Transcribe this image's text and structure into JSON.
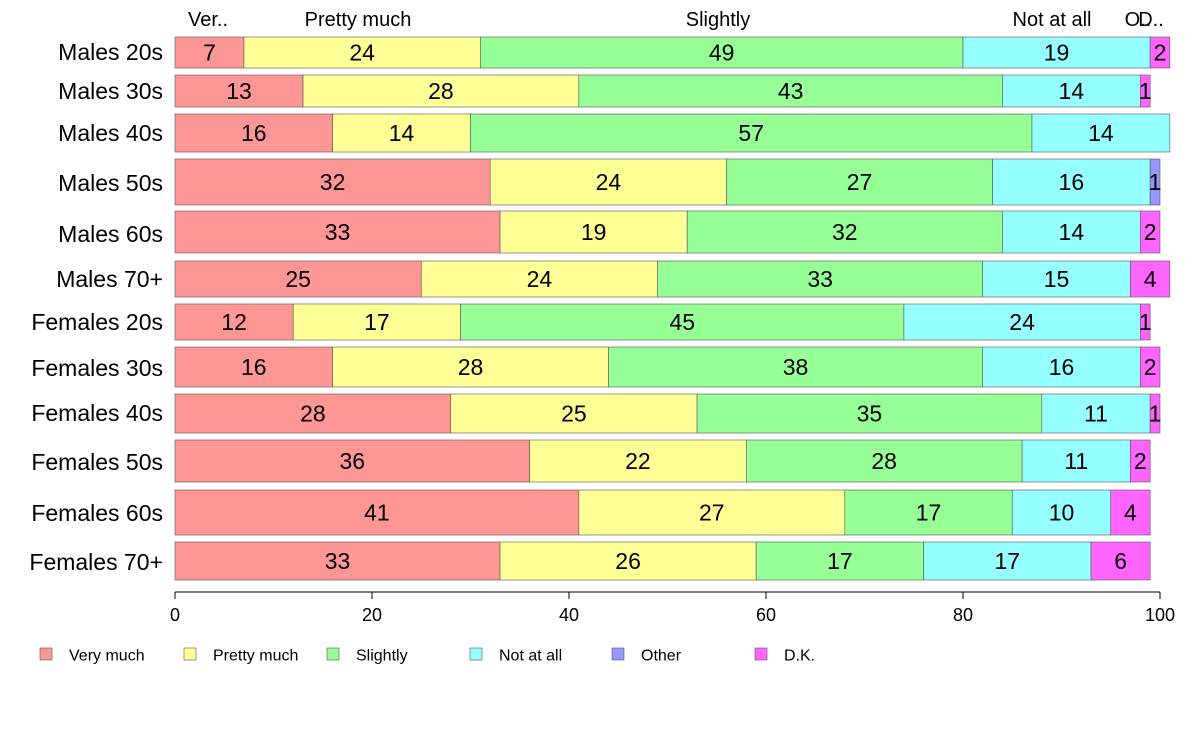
{
  "chart_data": {
    "type": "bar",
    "orientation": "horizontal",
    "stacked": true,
    "title": "",
    "xlabel": "",
    "ylabel": "",
    "xlim": [
      0,
      100
    ],
    "x_ticks": [
      "0",
      "20",
      "40",
      "60",
      "80",
      "100"
    ],
    "grid": false,
    "legend_position": "bottom",
    "top_labels": [
      "Ver..",
      "Pretty much",
      "Slightly",
      "Not at all",
      "O..",
      "D.."
    ],
    "categories": [
      "Males 20s",
      "Males 30s",
      "Males 40s",
      "Males 50s",
      "Males 60s",
      "Males 70+",
      "Females 20s",
      "Females 30s",
      "Females 40s",
      "Females 50s",
      "Females 60s",
      "Females 70+"
    ],
    "series": [
      {
        "name": "Very much",
        "color": "#ff9696",
        "values": [
          7,
          13,
          16,
          32,
          33,
          25,
          12,
          16,
          28,
          36,
          41,
          33
        ]
      },
      {
        "name": "Pretty much",
        "color": "#ffff96",
        "values": [
          24,
          28,
          14,
          24,
          19,
          24,
          17,
          28,
          25,
          22,
          27,
          26
        ]
      },
      {
        "name": "Slightly",
        "color": "#96ff96",
        "values": [
          49,
          43,
          57,
          27,
          32,
          33,
          45,
          38,
          35,
          28,
          17,
          17
        ]
      },
      {
        "name": "Not at all",
        "color": "#96ffff",
        "values": [
          19,
          14,
          14,
          16,
          14,
          15,
          24,
          16,
          11,
          11,
          10,
          17
        ]
      },
      {
        "name": "Other",
        "color": "#9696ff",
        "values": [
          0,
          0,
          0,
          1,
          0,
          0,
          0,
          0,
          0,
          0,
          0,
          0
        ]
      },
      {
        "name": "D.K.",
        "color": "#ff64ff",
        "values": [
          2,
          1,
          0,
          0,
          2,
          4,
          1,
          2,
          1,
          2,
          4,
          6
        ]
      }
    ]
  }
}
